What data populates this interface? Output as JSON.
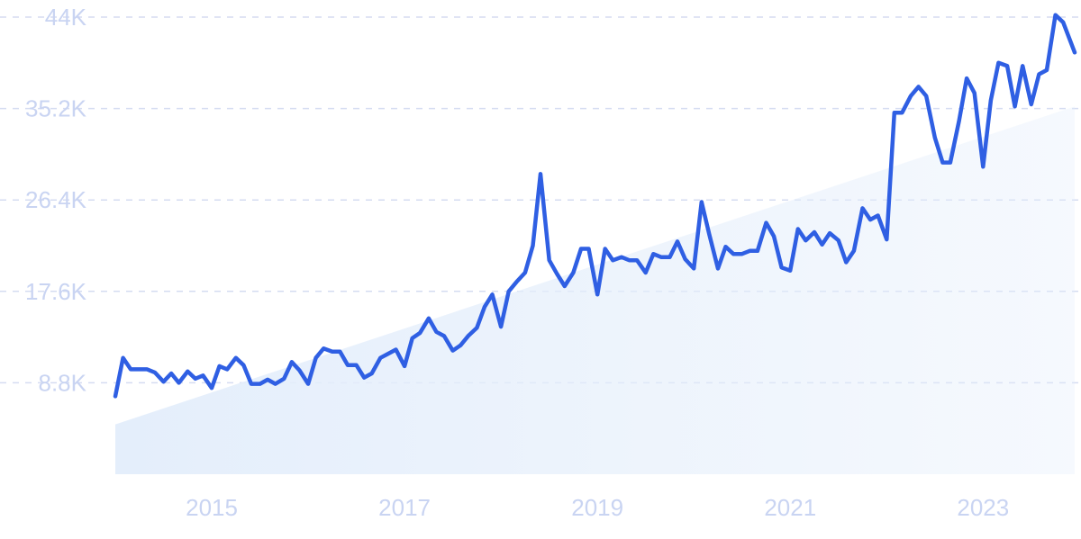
{
  "chart_data": {
    "type": "line",
    "title": "",
    "xlabel": "",
    "ylabel": "",
    "grid": true,
    "legend": "none",
    "line_color": "#2f5fe3",
    "trend_fill_color": "#e4eefb",
    "label_color": "#c9d4f2",
    "xlim": [
      2014.0,
      2023.95
    ],
    "ylim": [
      0,
      44000
    ],
    "x_ticks": [
      {
        "value": 2015,
        "label": "2015"
      },
      {
        "value": 2017,
        "label": "2017"
      },
      {
        "value": 2019,
        "label": "2019"
      },
      {
        "value": 2021,
        "label": "2021"
      },
      {
        "value": 2023,
        "label": "2023"
      }
    ],
    "y_ticks": [
      {
        "value": 8800,
        "label": "8.8K"
      },
      {
        "value": 17600,
        "label": "17.6K"
      },
      {
        "value": 26400,
        "label": "26.4K"
      },
      {
        "value": 35200,
        "label": "35.2K"
      },
      {
        "value": 44000,
        "label": "44K"
      }
    ],
    "trend": {
      "start": [
        2014.0,
        4800
      ],
      "end": [
        2023.95,
        35400
      ]
    },
    "series": [
      {
        "values": [
          [
            2014.0,
            7500
          ],
          [
            2014.08,
            11200
          ],
          [
            2014.16,
            10100
          ],
          [
            2014.25,
            10100
          ],
          [
            2014.33,
            10100
          ],
          [
            2014.41,
            9800
          ],
          [
            2014.5,
            8900
          ],
          [
            2014.58,
            9700
          ],
          [
            2014.66,
            8800
          ],
          [
            2014.75,
            9900
          ],
          [
            2014.83,
            9200
          ],
          [
            2014.91,
            9500
          ],
          [
            2015.0,
            8300
          ],
          [
            2015.08,
            10400
          ],
          [
            2015.16,
            10100
          ],
          [
            2015.25,
            11200
          ],
          [
            2015.33,
            10500
          ],
          [
            2015.41,
            8700
          ],
          [
            2015.5,
            8700
          ],
          [
            2015.58,
            9100
          ],
          [
            2015.66,
            8700
          ],
          [
            2015.75,
            9200
          ],
          [
            2015.83,
            10800
          ],
          [
            2015.91,
            10000
          ],
          [
            2016.0,
            8700
          ],
          [
            2016.08,
            11200
          ],
          [
            2016.16,
            12100
          ],
          [
            2016.25,
            11800
          ],
          [
            2016.33,
            11800
          ],
          [
            2016.41,
            10500
          ],
          [
            2016.5,
            10500
          ],
          [
            2016.58,
            9300
          ],
          [
            2016.66,
            9700
          ],
          [
            2016.75,
            11200
          ],
          [
            2016.83,
            11600
          ],
          [
            2016.91,
            12000
          ],
          [
            2017.0,
            10400
          ],
          [
            2017.08,
            13100
          ],
          [
            2017.16,
            13600
          ],
          [
            2017.25,
            15000
          ],
          [
            2017.33,
            13700
          ],
          [
            2017.41,
            13300
          ],
          [
            2017.5,
            11900
          ],
          [
            2017.58,
            12400
          ],
          [
            2017.66,
            13300
          ],
          [
            2017.75,
            14100
          ],
          [
            2017.83,
            16100
          ],
          [
            2017.91,
            17300
          ],
          [
            2018.0,
            14200
          ],
          [
            2018.08,
            17600
          ],
          [
            2018.16,
            18500
          ],
          [
            2018.25,
            19400
          ],
          [
            2018.33,
            22000
          ],
          [
            2018.41,
            28900
          ],
          [
            2018.5,
            20600
          ],
          [
            2018.58,
            19300
          ],
          [
            2018.66,
            18100
          ],
          [
            2018.75,
            19400
          ],
          [
            2018.83,
            21700
          ],
          [
            2018.91,
            21700
          ],
          [
            2019.0,
            17300
          ],
          [
            2019.08,
            21700
          ],
          [
            2019.16,
            20600
          ],
          [
            2019.25,
            20900
          ],
          [
            2019.33,
            20600
          ],
          [
            2019.41,
            20600
          ],
          [
            2019.5,
            19400
          ],
          [
            2019.58,
            21200
          ],
          [
            2019.66,
            20900
          ],
          [
            2019.75,
            20900
          ],
          [
            2019.83,
            22400
          ],
          [
            2019.91,
            20700
          ],
          [
            2020.0,
            19800
          ],
          [
            2020.08,
            26200
          ],
          [
            2020.16,
            23100
          ],
          [
            2020.25,
            19800
          ],
          [
            2020.33,
            21900
          ],
          [
            2020.41,
            21200
          ],
          [
            2020.5,
            21200
          ],
          [
            2020.58,
            21500
          ],
          [
            2020.66,
            21500
          ],
          [
            2020.75,
            24200
          ],
          [
            2020.83,
            22900
          ],
          [
            2020.91,
            19900
          ],
          [
            2021.0,
            19600
          ],
          [
            2021.08,
            23600
          ],
          [
            2021.16,
            22500
          ],
          [
            2021.25,
            23300
          ],
          [
            2021.33,
            22100
          ],
          [
            2021.41,
            23200
          ],
          [
            2021.5,
            22500
          ],
          [
            2021.58,
            20400
          ],
          [
            2021.66,
            21500
          ],
          [
            2021.75,
            25600
          ],
          [
            2021.83,
            24500
          ],
          [
            2021.91,
            24900
          ],
          [
            2022.0,
            22600
          ],
          [
            2022.08,
            34800
          ],
          [
            2022.16,
            34800
          ],
          [
            2022.25,
            36400
          ],
          [
            2022.33,
            37300
          ],
          [
            2022.41,
            36400
          ],
          [
            2022.5,
            32400
          ],
          [
            2022.58,
            30000
          ],
          [
            2022.66,
            30000
          ],
          [
            2022.75,
            34000
          ],
          [
            2022.83,
            38100
          ],
          [
            2022.91,
            36700
          ],
          [
            2023.0,
            29600
          ],
          [
            2023.08,
            36000
          ],
          [
            2023.16,
            39600
          ],
          [
            2023.25,
            39300
          ],
          [
            2023.33,
            35400
          ],
          [
            2023.41,
            39300
          ],
          [
            2023.5,
            35600
          ],
          [
            2023.58,
            38500
          ],
          [
            2023.66,
            38900
          ],
          [
            2023.75,
            44200
          ],
          [
            2023.83,
            43500
          ],
          [
            2023.95,
            40600
          ]
        ]
      }
    ]
  }
}
